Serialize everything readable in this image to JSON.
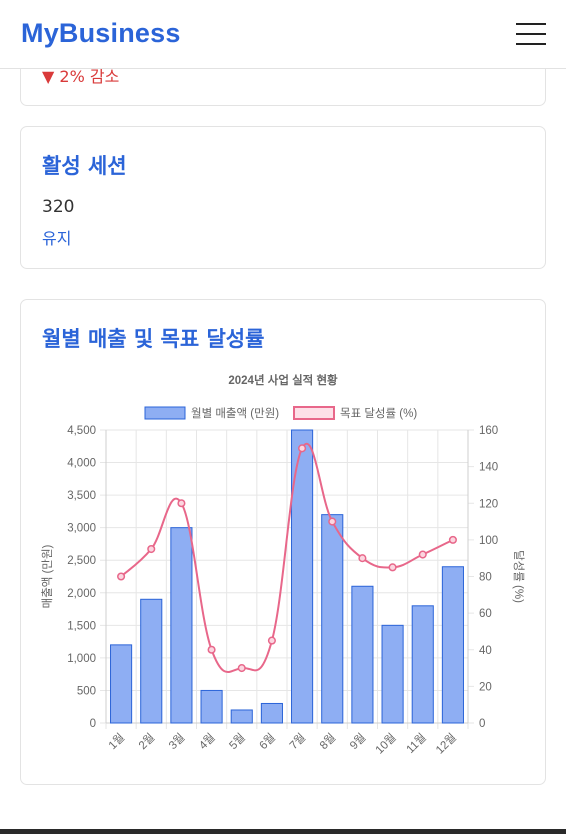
{
  "header": {
    "brand": "MyBusiness"
  },
  "card_prev": {
    "trend": "▼ 2% 감소"
  },
  "card_sessions": {
    "title": "활성 세션",
    "value": "320",
    "status": "유지"
  },
  "card_chart": {
    "title": "월별 매출 및 목표 달성률"
  },
  "colors": {
    "brand": "#2b64d8",
    "bar_fill": "#8eaef3",
    "bar_stroke": "#2b64d8",
    "line": "#e8678a",
    "decline": "#d93a3a"
  },
  "icons": {
    "menu": "hamburger-menu-icon"
  },
  "chart_data": {
    "type": "bar",
    "title": "2024년 사업 실적 현황",
    "categories": [
      "1월",
      "2월",
      "3월",
      "4월",
      "5월",
      "6월",
      "7월",
      "8월",
      "9월",
      "10월",
      "11월",
      "12월"
    ],
    "legend_position": "top",
    "grid": true,
    "series": [
      {
        "name": "월별 매출액 (만원)",
        "type": "bar",
        "axis": "left",
        "values": [
          1200,
          1900,
          3000,
          500,
          200,
          300,
          4500,
          3200,
          2100,
          1500,
          1800,
          2400
        ]
      },
      {
        "name": "목표 달성률 (%)",
        "type": "line",
        "axis": "right",
        "values": [
          80,
          95,
          120,
          40,
          30,
          45,
          150,
          110,
          90,
          85,
          92,
          100
        ]
      }
    ],
    "ylabel": "매출액 (만원)",
    "y2label": "달성률 (%)",
    "ylim": [
      0,
      4500
    ],
    "y2lim": [
      0,
      160
    ],
    "yticks": [
      "0",
      "500",
      "1,000",
      "1,500",
      "2,000",
      "2,500",
      "3,000",
      "3,500",
      "4,000",
      "4,500"
    ],
    "y2ticks": [
      "0",
      "20",
      "40",
      "60",
      "80",
      "100",
      "120",
      "140",
      "160"
    ]
  }
}
